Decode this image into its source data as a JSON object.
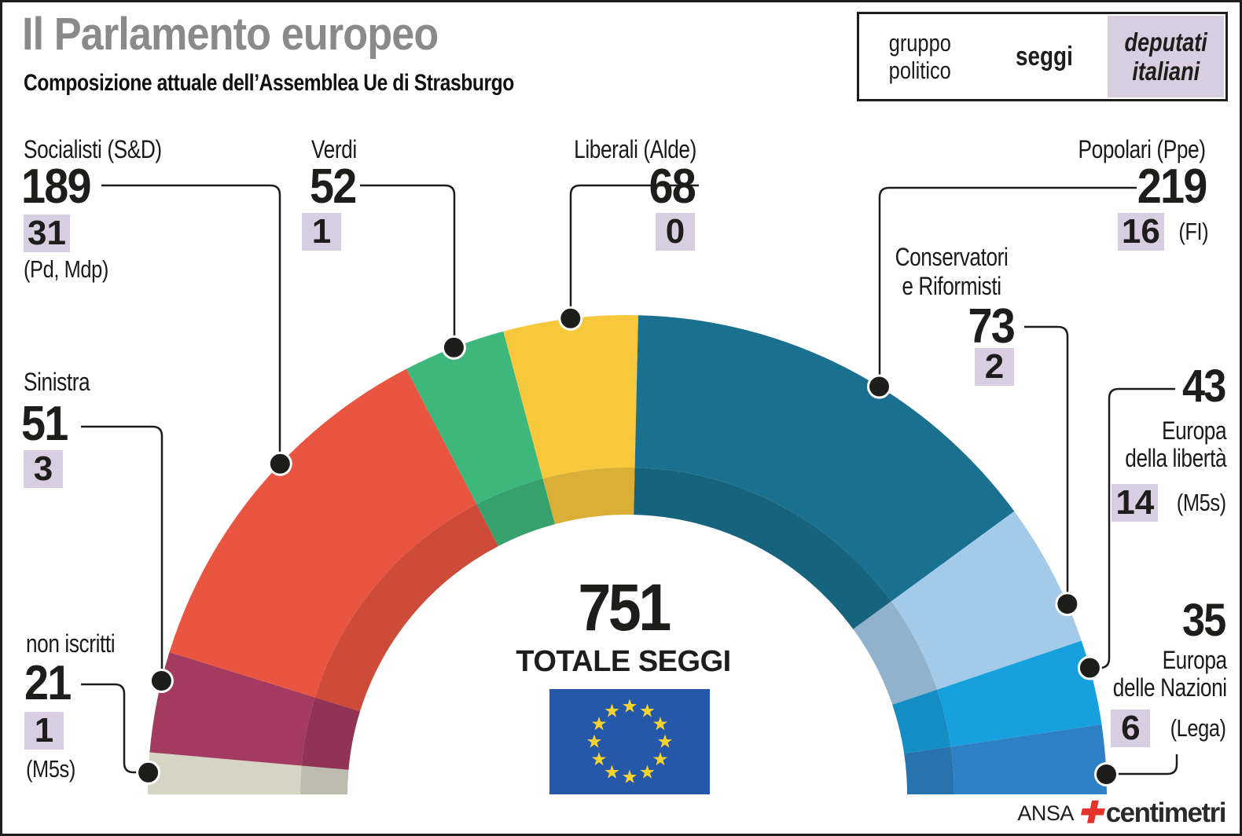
{
  "header": {
    "title": "Il Parlamento europeo",
    "subtitle": "Composizione attuale dell’Assemblea Ue di Strasburgo"
  },
  "legend": {
    "col1_line1": "gruppo",
    "col1_line2": "politico",
    "col2": "seggi",
    "col3_line1": "deputati",
    "col3_line2": "italiani"
  },
  "center": {
    "total": "751",
    "total_label": "TOTALE SEGGI"
  },
  "labels": {
    "conservatori": {
      "line1": "Conservatori",
      "line2": "e Riformisti"
    },
    "europa_liberta": {
      "line1": "Europa",
      "line2": "della libertà"
    },
    "europa_nazioni": {
      "line1": "Europa",
      "line2": "delle Nazioni"
    }
  },
  "footer": {
    "agency": "ANSA",
    "brand": "centimetri"
  },
  "colors": {
    "lavender": "#d9cee1",
    "title_gray": "#8a8a8a",
    "line_black": "#1d1d1b",
    "flag_blue": "#2558a9",
    "flag_star": "#f8d22e",
    "brand_red": "#e63329"
  },
  "chart_data": {
    "type": "pie",
    "subtype": "hemicycle",
    "title": "Il Parlamento europeo",
    "total_seats": 751,
    "total_label": "TOTALE SEGGI",
    "order": "left-to-right",
    "legend_columns": [
      "gruppo politico",
      "seggi",
      "deputati italiani"
    ],
    "groups": [
      {
        "name": "non iscritti",
        "seats": 21,
        "italians": 1,
        "italian_note": "(M5s)",
        "color": "#d6d4c5"
      },
      {
        "name": "Sinistra",
        "seats": 51,
        "italians": 3,
        "italian_note": "",
        "color": "#a43a5f"
      },
      {
        "name": "Socialisti (S&D)",
        "seats": 189,
        "italians": 31,
        "italian_note": "(Pd, Mdp)",
        "color": "#e95540"
      },
      {
        "name": "Verdi",
        "seats": 52,
        "italians": 1,
        "italian_note": "",
        "color": "#3eb77d"
      },
      {
        "name": "Liberali (Alde)",
        "seats": 68,
        "italians": 0,
        "italian_note": "",
        "color": "#f7c73c"
      },
      {
        "name": "Popolari (Ppe)",
        "seats": 219,
        "italians": 16,
        "italian_note": "(FI)",
        "color": "#19708f"
      },
      {
        "name": "Conservatori e Riformisti",
        "seats": 73,
        "italians": 2,
        "italian_note": "",
        "color": "#a4cae9"
      },
      {
        "name": "Europa della libertà",
        "seats": 43,
        "italians": 14,
        "italian_note": "(M5s)",
        "color": "#16a0de"
      },
      {
        "name": "Europa delle Nazioni",
        "seats": 35,
        "italians": 6,
        "italian_note": "(Lega)",
        "color": "#2e81c5"
      }
    ]
  }
}
